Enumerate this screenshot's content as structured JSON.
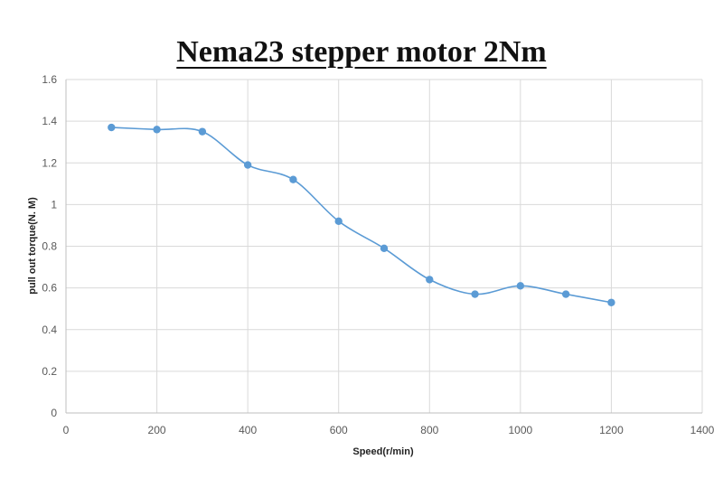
{
  "chart_data": {
    "type": "line",
    "title": "Nema23 stepper motor 2Nm",
    "xlabel": "Speed(r/min)",
    "ylabel": "pull out torque(N. M)",
    "xlim": [
      0,
      1400
    ],
    "ylim": [
      0,
      1.6
    ],
    "x_ticks": [
      "0",
      "200",
      "400",
      "600",
      "800",
      "1000",
      "1200",
      "1400"
    ],
    "y_ticks": [
      "0",
      "0.2",
      "0.4",
      "0.6",
      "0.8",
      "1",
      "1.2",
      "1.4",
      "1.6"
    ],
    "grid": true,
    "smooth": true,
    "series": [
      {
        "color": "#5b9bd5",
        "x": [
          100,
          200,
          300,
          400,
          500,
          600,
          700,
          800,
          900,
          1000,
          1100,
          1200
        ],
        "values": [
          1.37,
          1.36,
          1.35,
          1.19,
          1.12,
          0.92,
          0.79,
          0.64,
          0.57,
          0.61,
          0.57,
          0.53
        ]
      }
    ]
  }
}
